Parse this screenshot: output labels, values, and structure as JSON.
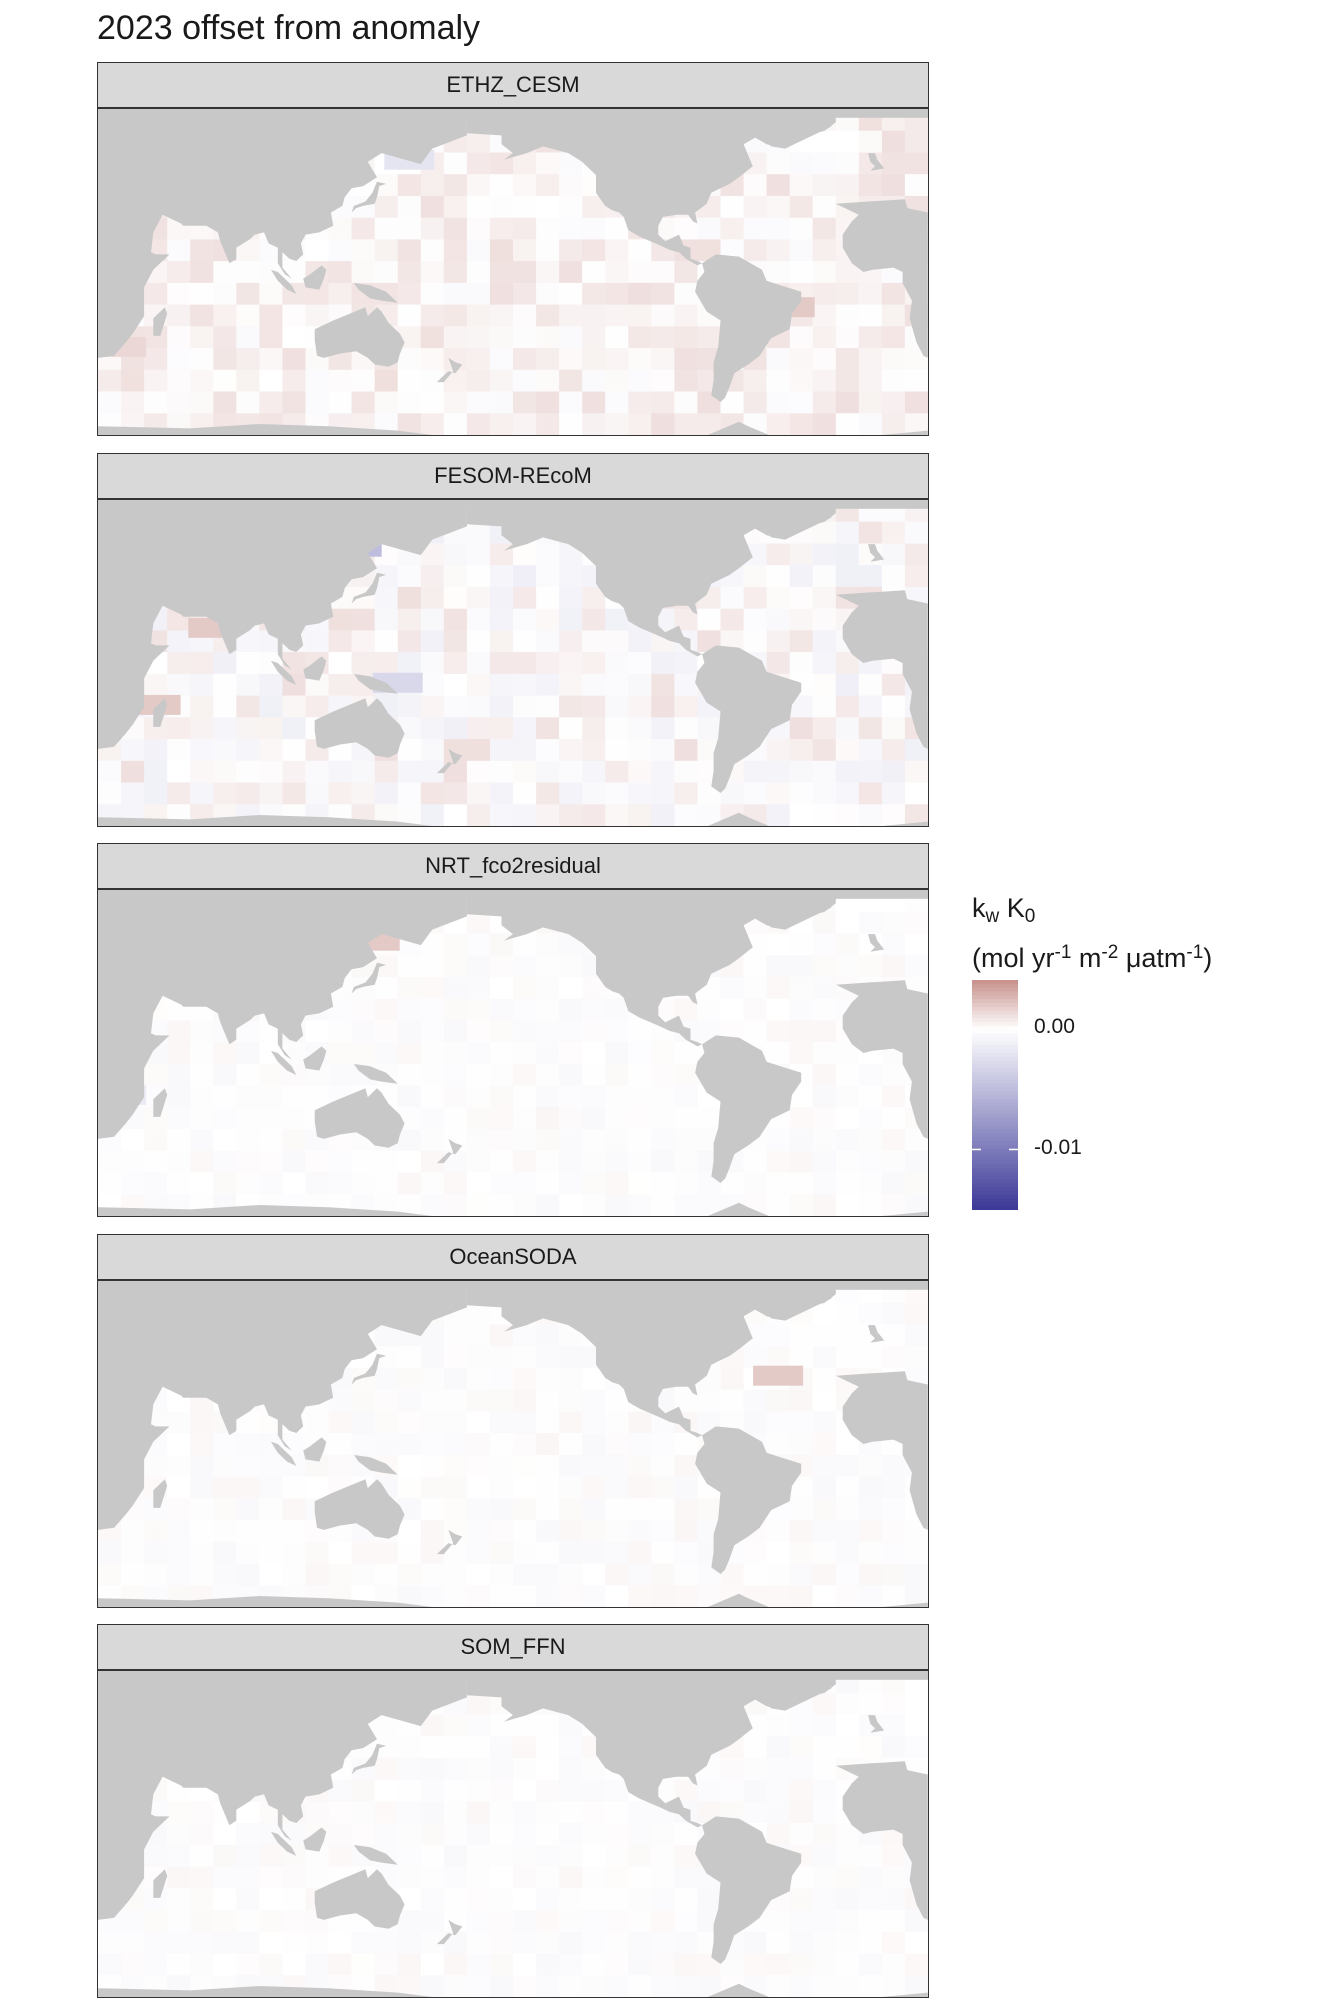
{
  "title": "2023 offset from anomaly",
  "colors": {
    "land": "#c8c8c8",
    "ocean": "#ffffff",
    "positive": "#c9948f",
    "neutral": "#ffffff",
    "negative": "#3d3a98",
    "strip": "#d9d9d9"
  },
  "panels": [
    {
      "label": "ETHZ_CESM",
      "pattern": "faint-positive",
      "highlights": [
        {
          "lon": 110,
          "lat": 55,
          "value": -0.004
        },
        {
          "lon": 155,
          "lat": 55,
          "value": -0.002
        },
        {
          "lon": -40,
          "lat": -12,
          "value": 0.002
        },
        {
          "lon": 30,
          "lat": -30,
          "value": 0.0015
        }
      ]
    },
    {
      "label": "FESOM-REcoM",
      "pattern": "mixed",
      "highlights": [
        {
          "lon": 110,
          "lat": 55,
          "value": -0.009
        },
        {
          "lon": 125,
          "lat": 55,
          "value": -0.014
        },
        {
          "lon": 140,
          "lat": 55,
          "value": -0.005
        },
        {
          "lon": 60,
          "lat": 35,
          "value": -0.003
        },
        {
          "lon": 70,
          "lat": 20,
          "value": 0.002
        },
        {
          "lon": 150,
          "lat": -5,
          "value": -0.003
        },
        {
          "lon": 45,
          "lat": -15,
          "value": 0.002
        }
      ]
    },
    {
      "label": "NRT_fco2residual",
      "pattern": "near-neutral",
      "highlights": [
        {
          "lon": 110,
          "lat": 55,
          "value": 0.005
        },
        {
          "lon": 125,
          "lat": 55,
          "value": 0.005
        },
        {
          "lon": 140,
          "lat": 55,
          "value": 0.002
        },
        {
          "lon": 30,
          "lat": -15,
          "value": -0.0015
        }
      ]
    },
    {
      "label": "OceanSODA",
      "pattern": "near-neutral",
      "highlights": [
        {
          "lon": 110,
          "lat": 55,
          "value": 0.005
        },
        {
          "lon": 125,
          "lat": 55,
          "value": 0.005
        },
        {
          "lon": 60,
          "lat": 35,
          "value": 0.0015
        },
        {
          "lon": -45,
          "lat": 35,
          "value": 0.002
        }
      ]
    },
    {
      "label": "SOM_FFN",
      "pattern": "near-neutral",
      "highlights": [
        {
          "lon": 110,
          "lat": 55,
          "value": 0.005
        },
        {
          "lon": 125,
          "lat": 55,
          "value": 0.005
        },
        {
          "lon": 70,
          "lat": 35,
          "value": -0.0015
        }
      ]
    }
  ],
  "legend": {
    "title_main": "k",
    "title_sub1": "w",
    "title_mid": " K",
    "title_sub2": "0",
    "units_open": "(mol yr",
    "units_sup1": "-1",
    "units_m": " m",
    "units_sup2": "-2",
    "units_uatm": " μatm",
    "units_sup3": "-1",
    "units_close": ")",
    "min": -0.015,
    "max": 0.004,
    "ticks": [
      {
        "value": 0.0,
        "label": "0.00"
      },
      {
        "value": -0.01,
        "label": "-0.01"
      }
    ]
  }
}
